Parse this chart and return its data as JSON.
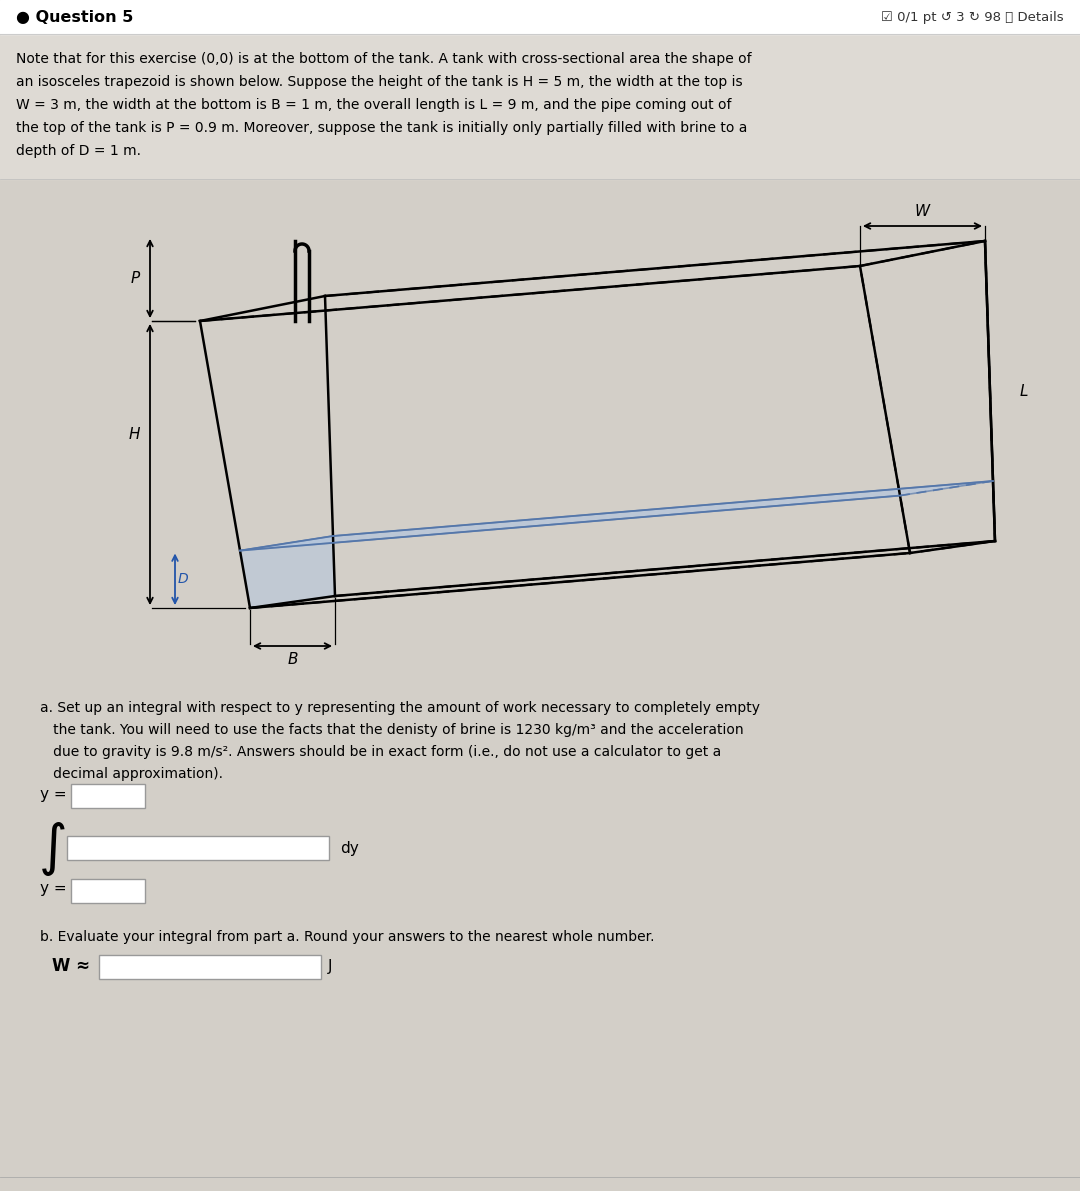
{
  "bg_color": "#d3cfc8",
  "white_bg": "#ffffff",
  "text_color": "#000000",
  "tank_line_color": "#000000",
  "water_color": "#b0c4de",
  "water_edge_color": "#5577aa",
  "pipe_color": "#000000",
  "H_arrow_color": "#000000",
  "D_arrow_color": "#2255aa",
  "P_arrow_color": "#000000",
  "W_arrow_color": "#000000",
  "B_arrow_color": "#000000",
  "L_label_color": "#000000",
  "problem_lines": [
    "Note that for this exercise (0,0) is at the bottom of the tank. A tank with cross-sectional area the shape of",
    "an isosceles trapezoid is shown below. Suppose the height of the tank is H = 5 m, the width at the top is",
    "W = 3 m, the width at the bottom is B = 1 m, the overall length is L = 9 m, and the pipe coming out of",
    "the top of the tank is P = 0.9 m. Moreover, suppose the tank is initially only partially filled with brine to a",
    "depth of D = 1 m."
  ],
  "part_a_lines": [
    "a. Set up an integral with respect to y representing the amount of work necessary to completely empty",
    "   the tank. You will need to use the facts that the denisty of brine is 1230 kg/m³ and the acceleration",
    "   due to gravity is 9.8 m/s². Answers should be in exact form (i.e., do not use a calculator to get a",
    "   decimal approximation)."
  ],
  "part_b_line": "b. Evaluate your integral from part a. Round your answers to the nearest whole number."
}
